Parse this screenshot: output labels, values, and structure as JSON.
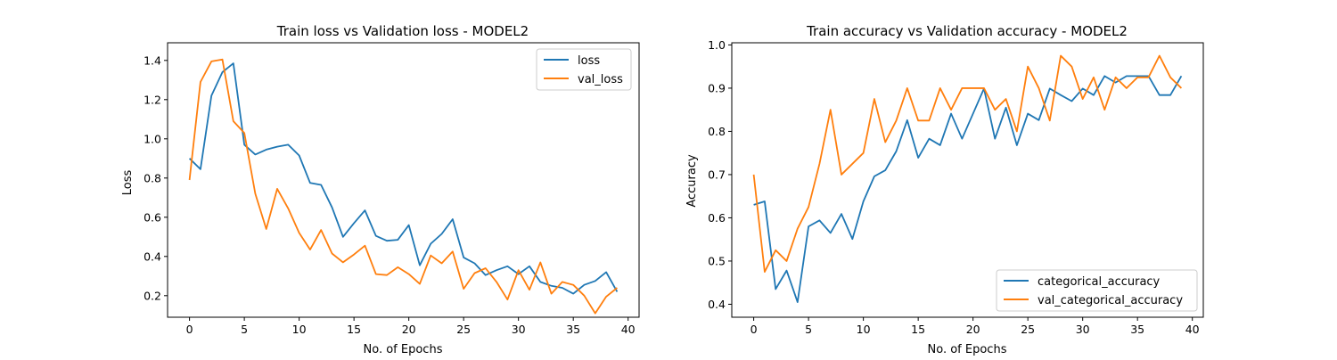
{
  "chart_data": [
    {
      "type": "line",
      "title": "Train loss vs Validation loss - MODEL2",
      "xlabel": "No. of Epochs",
      "ylabel": "Loss",
      "xlim": [
        -2,
        41
      ],
      "ylim": [
        0.09,
        1.49
      ],
      "xticks": [
        0,
        5,
        10,
        15,
        20,
        25,
        30,
        35,
        40
      ],
      "yticks": [
        0.2,
        0.4,
        0.6,
        0.8,
        1.0,
        1.2,
        1.4
      ],
      "ytick_decimals": 1,
      "legend_position": "upper right",
      "x": [
        0,
        1,
        2,
        3,
        4,
        5,
        6,
        7,
        8,
        9,
        10,
        11,
        12,
        13,
        14,
        15,
        16,
        17,
        18,
        19,
        20,
        21,
        22,
        23,
        24,
        25,
        26,
        27,
        28,
        29,
        30,
        31,
        32,
        33,
        34,
        35,
        36,
        37,
        38,
        39
      ],
      "series": [
        {
          "name": "loss",
          "color": "#1f77b4",
          "values": [
            0.9,
            0.845,
            1.22,
            1.34,
            1.385,
            0.97,
            0.92,
            0.945,
            0.96,
            0.97,
            0.915,
            0.775,
            0.765,
            0.65,
            0.5,
            0.57,
            0.635,
            0.505,
            0.48,
            0.485,
            0.56,
            0.355,
            0.465,
            0.515,
            0.59,
            0.395,
            0.365,
            0.305,
            0.33,
            0.35,
            0.31,
            0.35,
            0.27,
            0.25,
            0.24,
            0.21,
            0.255,
            0.275,
            0.32,
            0.22
          ]
        },
        {
          "name": "val_loss",
          "color": "#ff7f0e",
          "values": [
            0.79,
            1.29,
            1.395,
            1.405,
            1.09,
            1.03,
            0.72,
            0.54,
            0.745,
            0.645,
            0.52,
            0.435,
            0.535,
            0.415,
            0.37,
            0.41,
            0.455,
            0.31,
            0.305,
            0.345,
            0.31,
            0.26,
            0.405,
            0.365,
            0.425,
            0.235,
            0.315,
            0.34,
            0.27,
            0.18,
            0.33,
            0.23,
            0.37,
            0.21,
            0.27,
            0.255,
            0.2,
            0.11,
            0.195,
            0.24
          ]
        }
      ]
    },
    {
      "type": "line",
      "title": "Train accuracy vs Validation accuracy - MODEL2",
      "xlabel": "No. of Epochs",
      "ylabel": "Accuracy",
      "xlim": [
        -2,
        41
      ],
      "ylim": [
        0.37,
        1.005
      ],
      "xticks": [
        0,
        5,
        10,
        15,
        20,
        25,
        30,
        35,
        40
      ],
      "yticks": [
        0.4,
        0.5,
        0.6,
        0.7,
        0.8,
        0.9,
        1.0
      ],
      "ytick_decimals": 1,
      "legend_position": "lower right",
      "x": [
        0,
        1,
        2,
        3,
        4,
        5,
        6,
        7,
        8,
        9,
        10,
        11,
        12,
        13,
        14,
        15,
        16,
        17,
        18,
        19,
        20,
        21,
        22,
        23,
        24,
        25,
        26,
        27,
        28,
        29,
        30,
        31,
        32,
        33,
        34,
        35,
        36,
        37,
        38,
        39
      ],
      "series": [
        {
          "name": "categorical_accuracy",
          "color": "#1f77b4",
          "values": [
            0.63,
            0.638,
            0.435,
            0.478,
            0.405,
            0.58,
            0.594,
            0.565,
            0.609,
            0.551,
            0.638,
            0.696,
            0.71,
            0.754,
            0.826,
            0.739,
            0.783,
            0.768,
            0.841,
            0.783,
            0.841,
            0.899,
            0.783,
            0.855,
            0.768,
            0.841,
            0.826,
            0.899,
            0.884,
            0.87,
            0.899,
            0.884,
            0.928,
            0.913,
            0.928,
            0.928,
            0.928,
            0.884,
            0.884,
            0.928
          ]
        },
        {
          "name": "val_categorical_accuracy",
          "color": "#ff7f0e",
          "values": [
            0.7,
            0.475,
            0.525,
            0.5,
            0.575,
            0.625,
            0.725,
            0.85,
            0.7,
            0.725,
            0.75,
            0.875,
            0.775,
            0.825,
            0.9,
            0.825,
            0.825,
            0.9,
            0.85,
            0.9,
            0.9,
            0.9,
            0.85,
            0.875,
            0.8,
            0.95,
            0.9,
            0.825,
            0.975,
            0.95,
            0.875,
            0.925,
            0.85,
            0.925,
            0.9,
            0.925,
            0.925,
            0.975,
            0.925,
            0.9
          ]
        }
      ]
    }
  ]
}
